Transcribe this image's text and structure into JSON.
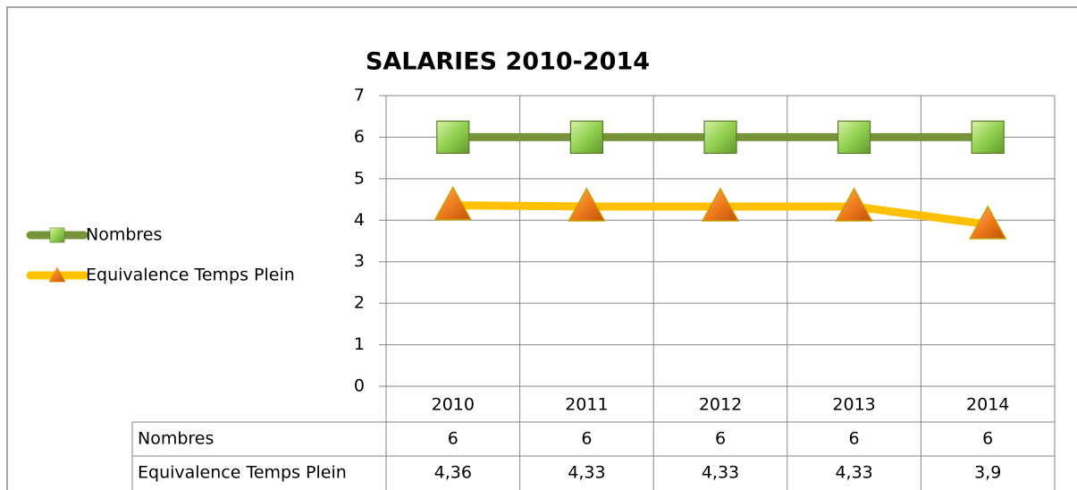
{
  "chart_data": {
    "type": "line",
    "title": "SALARIES  2010-2014",
    "categories": [
      "2010",
      "2011",
      "2012",
      "2013",
      "2014"
    ],
    "series": [
      {
        "name": "Nombres",
        "color": "#77933c",
        "marker": "square",
        "marker_color": "#92d050",
        "values": [
          6,
          6,
          6,
          6,
          6
        ]
      },
      {
        "name": "Equivalence Temps Plein",
        "color": "#ffc000",
        "marker": "triangle",
        "marker_color": "#f07c1c",
        "values": [
          4.36,
          4.33,
          4.33,
          4.33,
          3.9
        ],
        "value_labels": [
          "4,36",
          "4,33",
          "4,33",
          "4,33",
          "3,9"
        ]
      }
    ],
    "ylim": [
      0,
      7
    ],
    "yticks": [
      0,
      1,
      2,
      3,
      4,
      5,
      6,
      7
    ],
    "grid": true,
    "legend": "left",
    "data_table": true
  }
}
